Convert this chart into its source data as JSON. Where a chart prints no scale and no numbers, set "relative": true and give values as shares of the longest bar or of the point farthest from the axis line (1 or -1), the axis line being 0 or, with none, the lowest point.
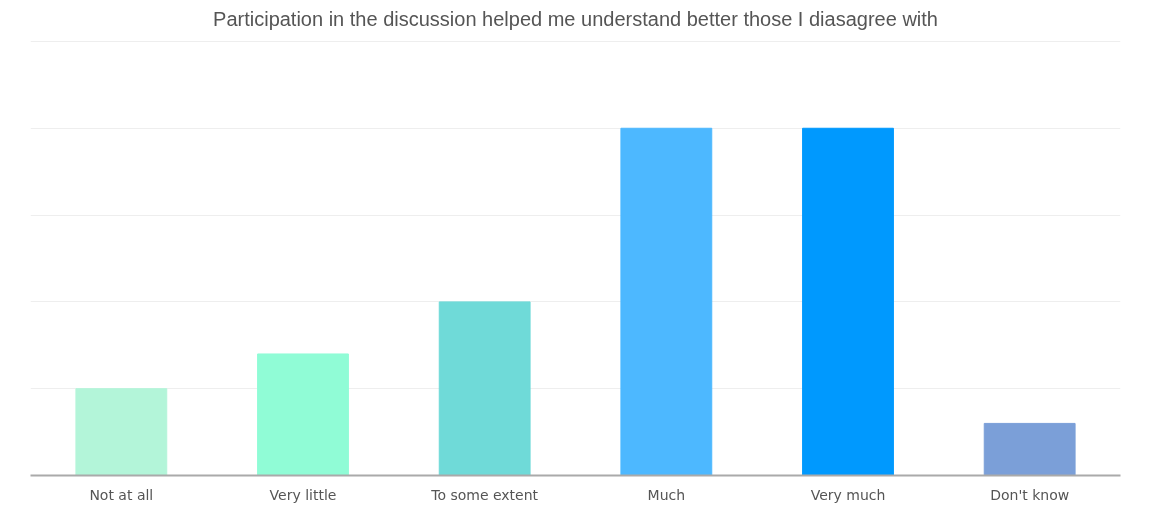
{
  "chart_data": {
    "type": "bar",
    "title": "Participation in the discussion helped me understand better those I diasagree with",
    "categories": [
      "Not at all",
      "Very little",
      "To some extent",
      "Much",
      "Very much",
      "Don't know"
    ],
    "values": [
      0.25,
      0.35,
      0.5,
      1,
      1,
      0.15
    ],
    "colors": [
      "#b3f5d9",
      "#90fcd6",
      "#6fdad8",
      "#4db8ff",
      "#0099fe",
      "#7b9fd8"
    ],
    "relative": true,
    "grid": "y"
  }
}
